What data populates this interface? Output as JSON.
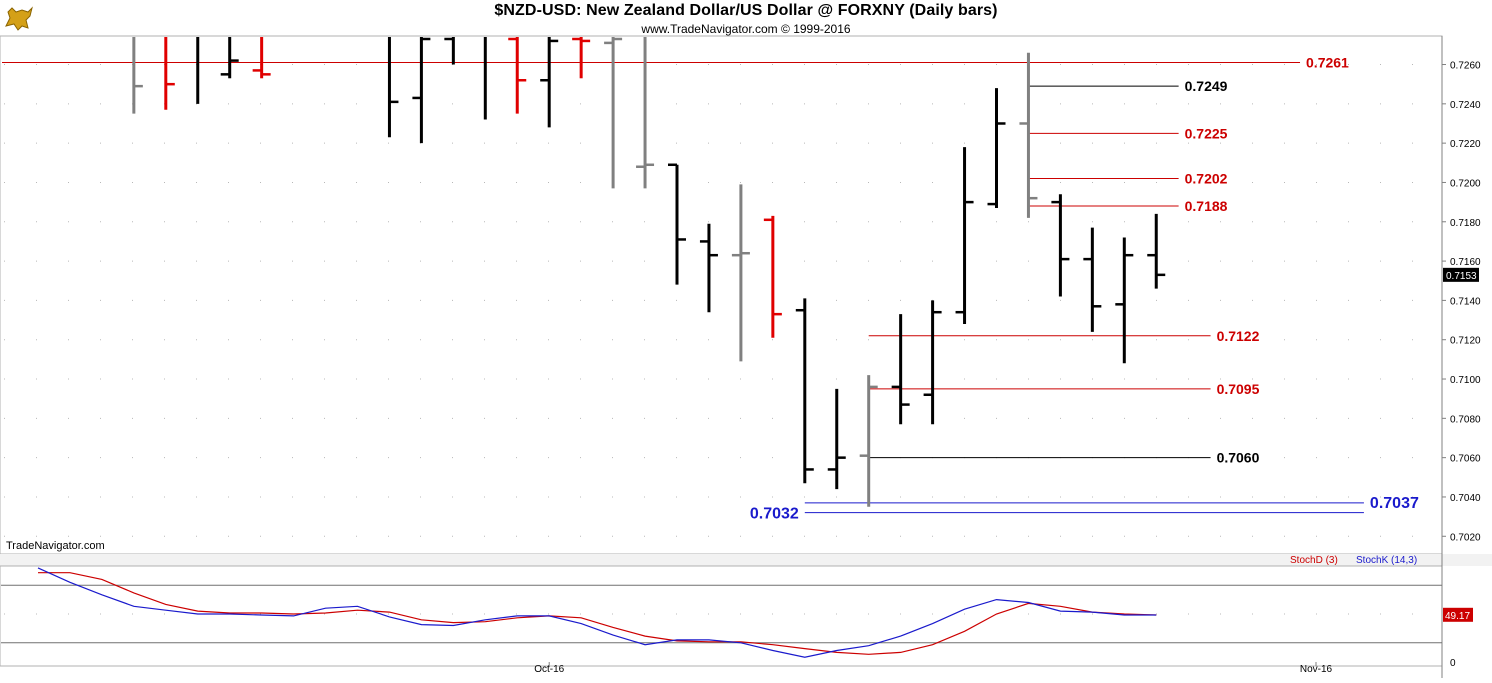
{
  "header": {
    "title": "$NZD-USD:  New Zealand Dollar/US Dollar @ FORXNY  (Daily bars)",
    "subtitle": "www.TradeNavigator.com © 1999-2016",
    "brand": "TradeNavigator.com"
  },
  "colors": {
    "up_bar": "#000000",
    "down_bar": "#e00000",
    "neutral_bar": "#808080",
    "level_red": "#cc0000",
    "level_black": "#000000",
    "level_blue": "#1a1acc",
    "stoch_d": "#cc0000",
    "stoch_k": "#1a1acc"
  },
  "chart_data": [
    {
      "type": "ohlc",
      "ylim": [
        0.7012,
        0.7274
      ],
      "y_ticks": [
        "0.7260",
        "0.7240",
        "0.7220",
        "0.7200",
        "0.7180",
        "0.7160",
        "0.7140",
        "0.7120",
        "0.7100",
        "0.7080",
        "0.7060",
        "0.7040",
        "0.7020"
      ],
      "x_labels": [
        {
          "label": "Oct-16",
          "bar": 16
        },
        {
          "label": "Nov-16",
          "bar": 40
        }
      ],
      "last_price": "0.7153",
      "bars": [
        {
          "i": 3,
          "c": "neutral",
          "o": null,
          "h": 0.7274,
          "l": 0.7235,
          "cl": 0.7249
        },
        {
          "i": 4,
          "c": "down",
          "o": null,
          "h": 0.7274,
          "l": 0.7237,
          "cl": 0.725
        },
        {
          "i": 5,
          "c": "up",
          "o": null,
          "h": 0.7274,
          "l": 0.724,
          "cl": null
        },
        {
          "i": 6,
          "c": "up",
          "o": 0.7255,
          "h": 0.7274,
          "l": 0.7253,
          "cl": 0.7262
        },
        {
          "i": 7,
          "c": "down",
          "o": 0.7257,
          "h": 0.7274,
          "l": 0.7253,
          "cl": 0.7255
        },
        {
          "i": 11,
          "c": "up",
          "o": null,
          "h": 0.7274,
          "l": 0.7223,
          "cl": 0.7241
        },
        {
          "i": 12,
          "c": "up",
          "o": 0.7243,
          "h": 0.7274,
          "l": 0.722,
          "cl": 0.7273
        },
        {
          "i": 13,
          "c": "up",
          "o": 0.7273,
          "h": 0.7274,
          "l": 0.726,
          "cl": null
        },
        {
          "i": 14,
          "c": "up",
          "o": null,
          "h": 0.7274,
          "l": 0.7232,
          "cl": null
        },
        {
          "i": 15,
          "c": "down",
          "o": 0.7274,
          "h": 0.7274,
          "l": 0.7235,
          "cl": 0.7252
        },
        {
          "i": 16,
          "c": "up",
          "o": 0.7252,
          "h": 0.7274,
          "l": 0.7228,
          "cl": 0.7272
        },
        {
          "i": 17,
          "c": "down",
          "o": 0.7274,
          "h": 0.7274,
          "l": 0.7253,
          "cl": 0.7272
        },
        {
          "i": 18,
          "c": "neutral",
          "o": 0.7271,
          "h": 0.7274,
          "l": 0.7197,
          "cl": 0.7274
        },
        {
          "i": 19,
          "c": "neutral",
          "o": 0.7208,
          "h": 0.7274,
          "l": 0.7197,
          "cl": 0.7209
        },
        {
          "i": 20,
          "c": "up",
          "o": 0.7209,
          "h": 0.7209,
          "l": 0.7148,
          "cl": 0.7171
        },
        {
          "i": 21,
          "c": "up",
          "o": 0.717,
          "h": 0.7179,
          "l": 0.7134,
          "cl": 0.7163
        },
        {
          "i": 22,
          "c": "neutral",
          "o": 0.7163,
          "h": 0.7199,
          "l": 0.7109,
          "cl": 0.7164
        },
        {
          "i": 23,
          "c": "down",
          "o": 0.7181,
          "h": 0.7183,
          "l": 0.7121,
          "cl": 0.7133
        },
        {
          "i": 24,
          "c": "up",
          "o": 0.7135,
          "h": 0.7141,
          "l": 0.7047,
          "cl": 0.7054
        },
        {
          "i": 25,
          "c": "up",
          "o": 0.7054,
          "h": 0.7095,
          "l": 0.7044,
          "cl": 0.706
        },
        {
          "i": 26,
          "c": "neutral",
          "o": 0.7061,
          "h": 0.7102,
          "l": 0.7035,
          "cl": 0.7096
        },
        {
          "i": 27,
          "c": "up",
          "o": 0.7096,
          "h": 0.7133,
          "l": 0.7077,
          "cl": 0.7087
        },
        {
          "i": 28,
          "c": "up",
          "o": 0.7092,
          "h": 0.714,
          "l": 0.7077,
          "cl": 0.7134
        },
        {
          "i": 29,
          "c": "up",
          "o": 0.7134,
          "h": 0.7218,
          "l": 0.7128,
          "cl": 0.719
        },
        {
          "i": 30,
          "c": "up",
          "o": 0.7189,
          "h": 0.7248,
          "l": 0.7187,
          "cl": 0.723
        },
        {
          "i": 31,
          "c": "neutral",
          "o": 0.723,
          "h": 0.7266,
          "l": 0.7182,
          "cl": 0.7192
        },
        {
          "i": 32,
          "c": "up",
          "o": 0.719,
          "h": 0.7194,
          "l": 0.7142,
          "cl": 0.7161
        },
        {
          "i": 33,
          "c": "up",
          "o": 0.7161,
          "h": 0.7177,
          "l": 0.7124,
          "cl": 0.7137
        },
        {
          "i": 34,
          "c": "up",
          "o": 0.7138,
          "h": 0.7172,
          "l": 0.7108,
          "cl": 0.7163
        },
        {
          "i": 35,
          "c": "up",
          "o": 0.7163,
          "h": 0.7184,
          "l": 0.7146,
          "cl": 0.7153
        }
      ],
      "levels": [
        {
          "value": 0.7261,
          "label": "0.7261",
          "color": "red",
          "from": -5,
          "to": 39.5,
          "label_side": "right"
        },
        {
          "value": 0.7249,
          "label": "0.7249",
          "color": "black",
          "from": 31,
          "to": 35.7,
          "label_side": "right"
        },
        {
          "value": 0.7225,
          "label": "0.7225",
          "color": "red",
          "from": 31,
          "to": 35.7,
          "label_side": "right"
        },
        {
          "value": 0.7202,
          "label": "0.7202",
          "color": "red",
          "from": 31,
          "to": 35.7,
          "label_side": "right"
        },
        {
          "value": 0.7188,
          "label": "0.7188",
          "color": "red",
          "from": 31,
          "to": 35.7,
          "label_side": "right"
        },
        {
          "value": 0.7122,
          "label": "0.7122",
          "color": "red",
          "from": 26,
          "to": 36.7,
          "label_side": "right"
        },
        {
          "value": 0.7095,
          "label": "0.7095",
          "color": "red",
          "from": 26,
          "to": 36.7,
          "label_side": "right"
        },
        {
          "value": 0.706,
          "label": "0.7060",
          "color": "black",
          "from": 26,
          "to": 36.7,
          "label_side": "right"
        },
        {
          "value": 0.7037,
          "label": "0.7037",
          "color": "blue",
          "from": 24,
          "to": 41.5,
          "label_side": "right"
        },
        {
          "value": 0.7032,
          "label": "0.7032",
          "color": "blue",
          "from": 24,
          "to": 41.5,
          "label_side": "left"
        }
      ]
    },
    {
      "type": "line",
      "ylim": [
        0,
        100
      ],
      "y_ticks": [
        "0"
      ],
      "guides": [
        80,
        20
      ],
      "last_value": "49.17",
      "series": [
        {
          "name": "StochD (3)",
          "color": "red",
          "x": [
            0,
            1,
            2,
            3,
            4,
            5,
            6,
            7,
            8,
            9,
            10,
            11,
            12,
            13,
            14,
            15,
            16,
            17,
            18,
            19,
            20,
            21,
            22,
            23,
            24,
            25,
            26,
            27,
            28,
            29,
            30,
            31,
            32,
            33,
            34,
            35
          ],
          "values": [
            93,
            93,
            86,
            72,
            60,
            53,
            51,
            51,
            50,
            51,
            54,
            52,
            44,
            41,
            42,
            46,
            48,
            46,
            36,
            27,
            22,
            21,
            21,
            18,
            14,
            10,
            8,
            10,
            18,
            32,
            50,
            61,
            58,
            52,
            50,
            49
          ]
        },
        {
          "name": "StochK (14,3)",
          "color": "blue",
          "x": [
            0,
            1,
            2,
            3,
            4,
            5,
            6,
            7,
            8,
            9,
            10,
            11,
            12,
            13,
            14,
            15,
            16,
            17,
            18,
            19,
            20,
            21,
            22,
            23,
            24,
            25,
            26,
            27,
            28,
            29,
            30,
            31,
            32,
            33,
            34,
            35
          ],
          "values": [
            98,
            83,
            70,
            58,
            54,
            50,
            50,
            49,
            48,
            56,
            58,
            47,
            39,
            38,
            44,
            48,
            48,
            40,
            28,
            18,
            23,
            23,
            20,
            12,
            5,
            12,
            17,
            27,
            40,
            55,
            65,
            62,
            53,
            52,
            49,
            49
          ]
        }
      ]
    }
  ]
}
